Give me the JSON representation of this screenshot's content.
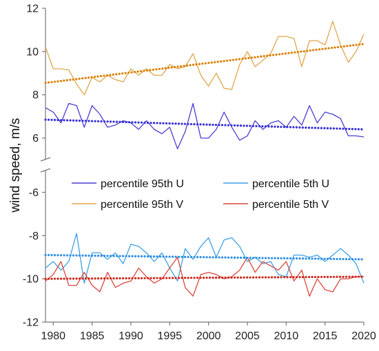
{
  "chart_data": {
    "type": "line",
    "title": "",
    "xlabel": "",
    "ylabel": "wind speed, m/s",
    "xlim": [
      1979,
      2020
    ],
    "x_ticks": [
      1980,
      1985,
      1990,
      1995,
      2000,
      2005,
      2010,
      2015,
      2020
    ],
    "y_ticks_upper": [
      6,
      8,
      10,
      12
    ],
    "y_ticks_lower": [
      -12,
      -10,
      -8,
      -6
    ],
    "y_axis_break": true,
    "legend_position": "middle (axis break)",
    "grid": false,
    "x": [
      1979,
      1980,
      1981,
      1982,
      1983,
      1984,
      1985,
      1986,
      1987,
      1988,
      1989,
      1990,
      1991,
      1992,
      1993,
      1994,
      1995,
      1996,
      1997,
      1998,
      1999,
      2000,
      2001,
      2002,
      2003,
      2004,
      2005,
      2006,
      2007,
      2008,
      2009,
      2010,
      2011,
      2012,
      2013,
      2014,
      2015,
      2016,
      2017,
      2018,
      2019,
      2020
    ],
    "series": [
      {
        "name": "percentile 95th U",
        "color": "#4a3fd0",
        "trend_color": "#3a32d6",
        "trend": [
          6.85,
          6.4
        ],
        "values": [
          7.4,
          7.2,
          6.7,
          7.6,
          7.5,
          6.5,
          7.5,
          7.1,
          6.5,
          6.6,
          6.8,
          6.7,
          6.4,
          6.8,
          6.4,
          6.2,
          6.5,
          5.5,
          6.3,
          7.6,
          6.0,
          6.0,
          6.4,
          7.2,
          6.5,
          5.9,
          6.1,
          6.8,
          6.4,
          6.7,
          6.8,
          6.5,
          7.0,
          6.6,
          7.5,
          6.7,
          7.2,
          7.1,
          6.9,
          6.1,
          6.1,
          6.05
        ]
      },
      {
        "name": "percentile 95th V",
        "color": "#e0a64a",
        "trend_color": "#d9820a",
        "trend": [
          8.55,
          10.35
        ],
        "values": [
          10.2,
          9.2,
          9.2,
          9.15,
          8.5,
          8.0,
          8.8,
          8.6,
          8.9,
          8.7,
          8.6,
          9.2,
          8.9,
          9.2,
          8.9,
          8.9,
          9.4,
          9.2,
          9.3,
          9.9,
          8.9,
          8.4,
          9.0,
          8.3,
          8.25,
          9.4,
          10.0,
          9.3,
          9.6,
          9.9,
          10.7,
          10.7,
          10.6,
          9.3,
          10.5,
          10.5,
          10.3,
          11.4,
          10.3,
          9.5,
          10.0,
          10.8
        ]
      },
      {
        "name": "percentile 5th U",
        "color": "#3da0e8",
        "trend_color": "#2f8fe2",
        "trend": [
          -8.9,
          -9.1
        ],
        "values": [
          -9.5,
          -9.2,
          -9.6,
          -9.2,
          -7.9,
          -10.2,
          -8.8,
          -8.8,
          -9.1,
          -8.8,
          -9.3,
          -8.4,
          -8.5,
          -8.8,
          -9.2,
          -8.8,
          -9.5,
          -10.1,
          -8.6,
          -9.1,
          -8.5,
          -8.1,
          -9.0,
          -8.2,
          -8.1,
          -8.5,
          -9.2,
          -9.0,
          -9.3,
          -9.2,
          -9.8,
          -9.9,
          -8.9,
          -8.9,
          -9.0,
          -8.9,
          -9.2,
          -8.9,
          -8.6,
          -8.9,
          -9.3,
          -10.2
        ]
      },
      {
        "name": "percentile 5th V",
        "color": "#d9453c",
        "trend_color": "#cc2a1e",
        "trend": [
          -10.0,
          -9.9
        ],
        "values": [
          -10.1,
          -9.8,
          -9.2,
          -10.3,
          -10.3,
          -9.7,
          -10.3,
          -10.6,
          -9.7,
          -10.4,
          -10.2,
          -10.1,
          -9.5,
          -9.9,
          -10.2,
          -10.0,
          -9.5,
          -9.0,
          -10.4,
          -10.8,
          -9.8,
          -9.7,
          -9.8,
          -10.0,
          -9.9,
          -9.6,
          -9.0,
          -9.7,
          -9.2,
          -9.4,
          -9.6,
          -9.2,
          -10.1,
          -9.6,
          -10.8,
          -10.0,
          -10.5,
          -10.6,
          -10.0,
          -10.0,
          -9.9,
          -9.9
        ]
      }
    ]
  }
}
